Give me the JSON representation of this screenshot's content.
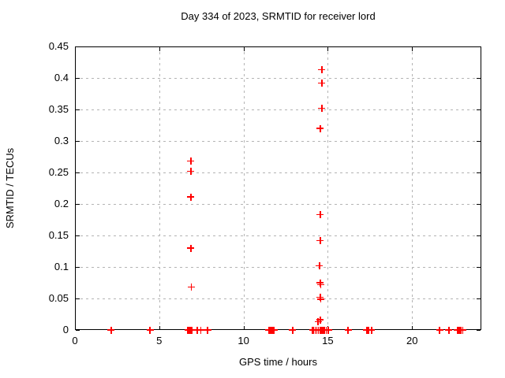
{
  "chart_data": {
    "type": "scatter",
    "title": "Day 334 of 2023, SRMTID for receiver lord",
    "xlabel": "GPS time / hours",
    "ylabel": "SRMTID / TECUs",
    "xlim": [
      0,
      24.11
    ],
    "ylim": [
      0,
      0.45
    ],
    "xticks": [
      0,
      5,
      10,
      15,
      20
    ],
    "xtick_labels": [
      "0",
      "5",
      "10",
      "15",
      "20"
    ],
    "yticks": [
      0,
      0.05,
      0.1,
      0.15,
      0.2,
      0.25,
      0.3,
      0.35,
      0.4,
      0.45
    ],
    "ytick_labels": [
      "0",
      "0.05",
      "0.1",
      "0.15",
      "0.2",
      "0.25",
      "0.3",
      "0.35",
      "0.4",
      "0.45"
    ],
    "grid": true,
    "legend": false,
    "marker_shape": "plus",
    "marker_color": "#ff0000",
    "points": [
      [
        6.88,
        0.268
      ],
      [
        6.88,
        0.252
      ],
      [
        6.88,
        0.211
      ],
      [
        6.88,
        0.13
      ],
      [
        6.9,
        0.068
      ],
      [
        14.64,
        0.413
      ],
      [
        14.64,
        0.392
      ],
      [
        14.64,
        0.352
      ],
      [
        14.55,
        0.32
      ],
      [
        14.55,
        0.183
      ],
      [
        14.55,
        0.142
      ],
      [
        14.51,
        0.102
      ],
      [
        14.55,
        0.075
      ],
      [
        14.58,
        0.072
      ],
      [
        14.55,
        0.052
      ],
      [
        14.57,
        0.049
      ],
      [
        14.55,
        0.016
      ],
      [
        14.42,
        0.013
      ],
      [
        2.15,
        0
      ],
      [
        4.45,
        0
      ],
      [
        6.7,
        0
      ],
      [
        6.75,
        0
      ],
      [
        6.8,
        0
      ],
      [
        6.85,
        0
      ],
      [
        6.9,
        0
      ],
      [
        6.95,
        0
      ],
      [
        7.26,
        0
      ],
      [
        7.46,
        0
      ],
      [
        7.87,
        0
      ],
      [
        11.5,
        0
      ],
      [
        11.55,
        0
      ],
      [
        11.65,
        0
      ],
      [
        11.75,
        0
      ],
      [
        11.8,
        0
      ],
      [
        12.92,
        0
      ],
      [
        14.1,
        0
      ],
      [
        14.15,
        0
      ],
      [
        14.25,
        0
      ],
      [
        14.35,
        0
      ],
      [
        14.45,
        0
      ],
      [
        14.55,
        0
      ],
      [
        14.6,
        0
      ],
      [
        14.7,
        0
      ],
      [
        14.8,
        0
      ],
      [
        14.9,
        0
      ],
      [
        15.0,
        0
      ],
      [
        15.05,
        0
      ],
      [
        16.2,
        0
      ],
      [
        17.3,
        0
      ],
      [
        17.35,
        0
      ],
      [
        17.42,
        0
      ],
      [
        17.6,
        0
      ],
      [
        21.63,
        0
      ],
      [
        22.19,
        0
      ],
      [
        22.7,
        0
      ],
      [
        22.8,
        0
      ],
      [
        22.9,
        0
      ],
      [
        23.0,
        0
      ]
    ]
  }
}
